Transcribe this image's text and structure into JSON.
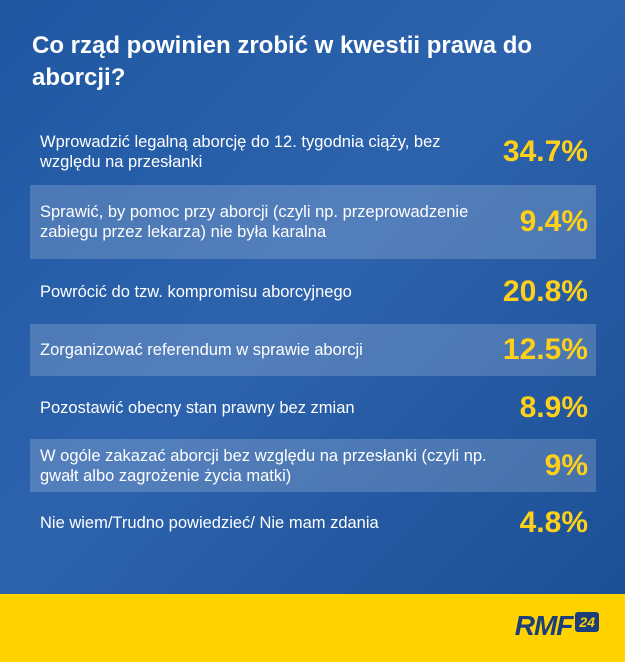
{
  "chart_data": {
    "type": "table",
    "title": "Co rząd powinien zrobić w kwestii prawa do aborcji?",
    "categories": [
      "Wprowadzić legalną aborcję do 12. tygodnia ciąży, bez względu na przesłanki",
      "Sprawić, by pomoc przy aborcji (czyli np. przeprowadzenie zabiegu przez lekarza) nie była karalna",
      "Powrócić do tzw. kompromisu aborcyjnego",
      "Zorganizować referendum w sprawie aborcji",
      "Pozostawić obecny stan prawny bez zmian",
      "W ogóle zakazać aborcji bez względu na przesłanki (czyli np. gwałt albo zagrożenie życia matki)",
      "Nie wiem/Trudno powiedzieć/ Nie mam zdania"
    ],
    "values": [
      34.7,
      9.4,
      20.8,
      12.5,
      8.9,
      9,
      4.8
    ],
    "value_labels": [
      "34.7%",
      "9.4%",
      "20.8%",
      "12.5%",
      "8.9%",
      "9%",
      "4.8%"
    ]
  },
  "colors": {
    "background": "#2459a3",
    "value": "#ffd01a",
    "footer": "#ffd200",
    "logo": "#1a3f7a"
  },
  "footer": {
    "logo_text": "RMF",
    "logo_badge": "24"
  }
}
